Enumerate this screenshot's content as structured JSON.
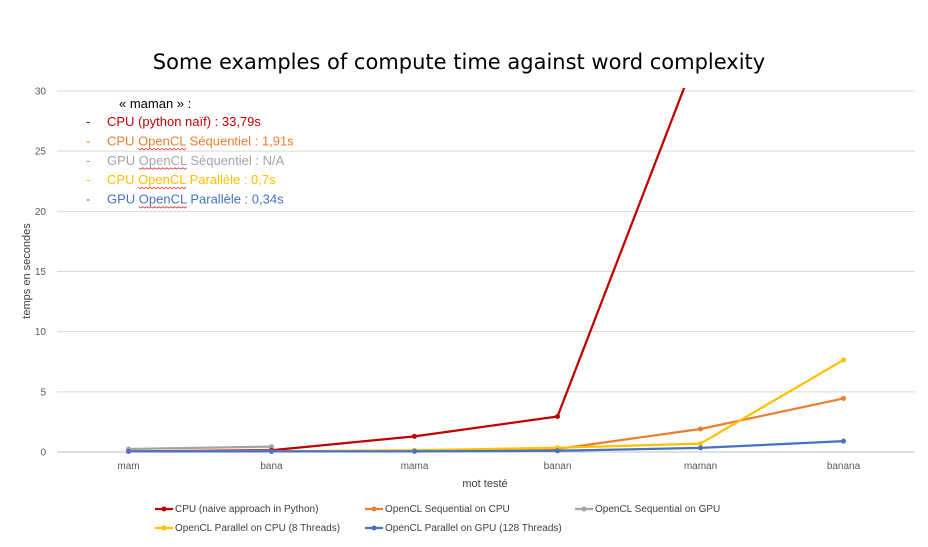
{
  "chart_data": {
    "type": "line",
    "title": "Some examples of compute time against word complexity",
    "xlabel": "mot testé",
    "ylabel": "temps en secondes",
    "categories": [
      "mam",
      "bana",
      "mama",
      "banan",
      "maman",
      "banana"
    ],
    "ylim": [
      0,
      30
    ],
    "yticks": [
      0,
      5,
      10,
      15,
      20,
      25,
      30
    ],
    "grid": true,
    "legend_position": "bottom",
    "series": [
      {
        "name": "CPU (naive approach in Python)",
        "color": "#c00000",
        "values": [
          0.05,
          0.15,
          1.3,
          2.95,
          33.79,
          null
        ]
      },
      {
        "name": "OpenCL Sequential on CPU",
        "color": "#ed7d31",
        "values": [
          0.05,
          0.05,
          0.1,
          0.25,
          1.91,
          4.45
        ]
      },
      {
        "name": "OpenCL Sequential on GPU",
        "color": "#a5a5a5",
        "values": [
          0.25,
          0.45,
          null,
          null,
          null,
          null
        ]
      },
      {
        "name": "OpenCL Parallel on CPU (8 Threads)",
        "color": "#ffc000",
        "values": [
          0.05,
          0.05,
          0.15,
          0.35,
          0.7,
          7.65
        ]
      },
      {
        "name": "OpenCL Parallel on GPU (128 Threads)",
        "color": "#4472c4",
        "values": [
          0.05,
          0.05,
          0.05,
          0.1,
          0.34,
          0.9
        ]
      }
    ],
    "annotation": {
      "heading": "« maman » :",
      "items": [
        {
          "prefix": "CPU ",
          "opencl": "",
          "rest": "(python naïf) : 33,79s",
          "color": "#c00000"
        },
        {
          "prefix": "CPU ",
          "opencl": "OpenCL",
          "rest": " Séquentiel : 1,91s",
          "color": "#ed7d31"
        },
        {
          "prefix": "GPU ",
          "opencl": "OpenCL",
          "rest": " Séquentiel : N/A",
          "color": "#a5a5a5"
        },
        {
          "prefix": "CPU ",
          "opencl": "OpenCL",
          "rest": " Parallèle : 0,7s",
          "color": "#ffc000"
        },
        {
          "prefix": "GPU ",
          "opencl": "OpenCL",
          "rest": " Parallèle : 0,34s",
          "color": "#4472c4"
        }
      ]
    }
  }
}
